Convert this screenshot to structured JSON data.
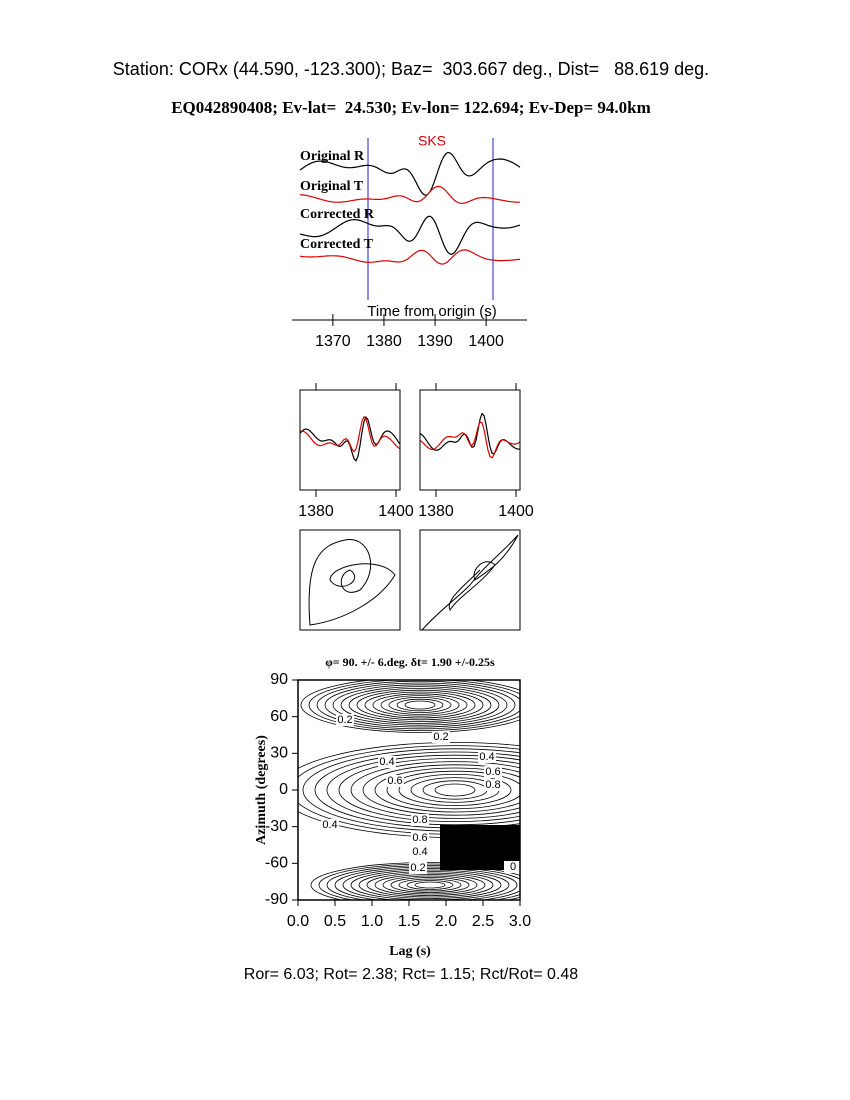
{
  "header": {
    "station_line": "Station: CORx (44.590, -123.300); Baz=  303.667 deg., Dist=   88.619 deg.",
    "event_line": "EQ042890408; Ev-lat=  24.530; Ev-lon= 122.694; Ev-Dep= 94.0km"
  },
  "traces": {
    "phase": "SKS",
    "labels": [
      "Original R",
      "Original T",
      "Corrected R",
      "Corrected T"
    ],
    "xlabel": "Time from origin (s)",
    "xlim": [
      1362,
      1408
    ],
    "xticks": [
      1370,
      1380,
      1390,
      1400
    ]
  },
  "waveform_panels": [
    {
      "xlim": [
        1376,
        1401
      ],
      "xticks": [
        1380,
        1400
      ]
    },
    {
      "xlim": [
        1376,
        1401
      ],
      "xticks": [
        1380,
        1400
      ]
    }
  ],
  "grid_search": {
    "title": "φ= 90. +/- 6.deg. δt= 1.90 +/-0.25s",
    "xlabel": "Lag (s)",
    "ylabel": "Azimuth (degrees)",
    "xlim": [
      0,
      3
    ],
    "ylim": [
      -90,
      90
    ],
    "xticks": [
      {
        "value": 0,
        "label": "0.0"
      },
      {
        "value": 0.5,
        "label": "0.5"
      },
      {
        "value": 1,
        "label": "1.0"
      },
      {
        "value": 1.5,
        "label": "1.5"
      },
      {
        "value": 2,
        "label": "2.0"
      },
      {
        "value": 2.5,
        "label": "2.5"
      },
      {
        "value": 3,
        "label": "3.0"
      }
    ],
    "yticks": [
      90,
      60,
      30,
      0,
      -30,
      -60,
      -90
    ],
    "contour_labels": [
      "0.2",
      "0.2",
      "0.4",
      "0.6",
      "0.4",
      "0.6",
      "0.8",
      "0.4",
      "0.8",
      "0.6",
      "0.4",
      "0.2",
      "0"
    ]
  },
  "footer": "Ror= 6.03; Rot= 2.38; Rct= 1.15; Rct/Rot= 0.48"
}
